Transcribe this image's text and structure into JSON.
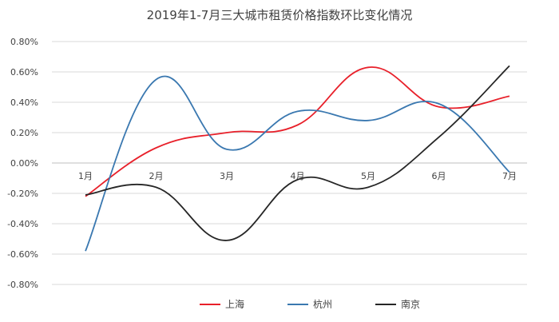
{
  "chart_data": {
    "type": "line",
    "title": "2019年1-7月三大城市租赁价格指数环比变化情况",
    "categories": [
      "1月",
      "2月",
      "3月",
      "4月",
      "5月",
      "6月",
      "7月"
    ],
    "y_ticks": [
      "0.80%",
      "0.60%",
      "0.40%",
      "0.20%",
      "0.00%",
      "-0.20%",
      "-0.40%",
      "-0.60%",
      "-0.80%"
    ],
    "ylim": [
      -0.8,
      0.8
    ],
    "y_unit": "%",
    "grid": true,
    "smooth": true,
    "legend_position": "bottom",
    "series": [
      {
        "name": "上海",
        "color": "#e8202a",
        "values": [
          -0.22,
          0.1,
          0.2,
          0.25,
          0.63,
          0.37,
          0.44
        ]
      },
      {
        "name": "杭州",
        "color": "#3a78b0",
        "values": [
          -0.58,
          0.55,
          0.09,
          0.34,
          0.28,
          0.39,
          -0.06
        ]
      },
      {
        "name": "南京",
        "color": "#262626",
        "values": [
          -0.21,
          -0.16,
          -0.51,
          -0.11,
          -0.16,
          0.17,
          0.64
        ]
      }
    ]
  }
}
